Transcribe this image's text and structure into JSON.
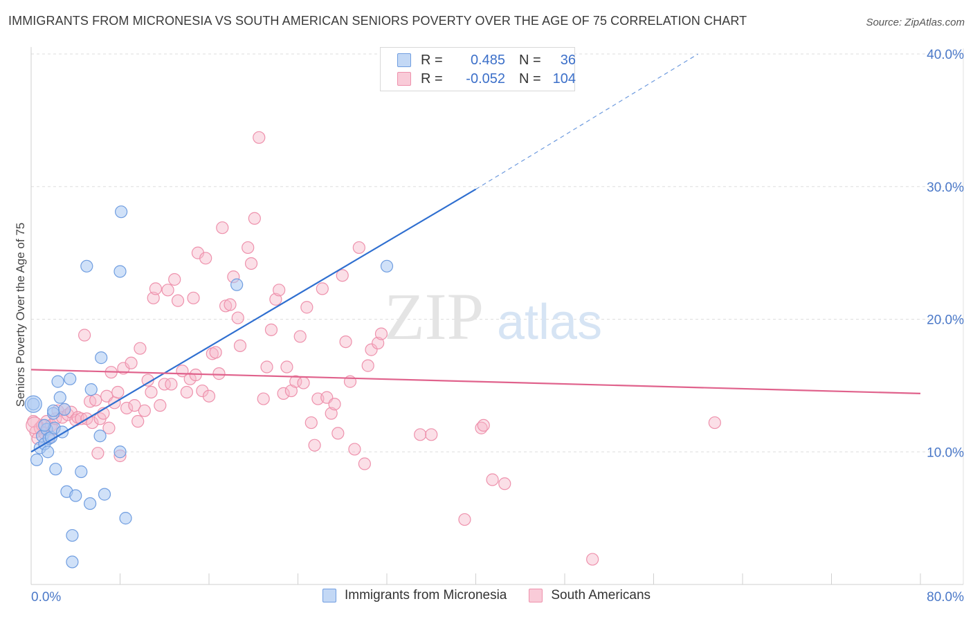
{
  "title": "IMMIGRANTS FROM MICRONESIA VS SOUTH AMERICAN SENIORS POVERTY OVER THE AGE OF 75 CORRELATION CHART",
  "source": "Source: ZipAtlas.com",
  "watermark": {
    "zip": "ZIP",
    "atlas": "atlas"
  },
  "legend": {
    "rows": [
      {
        "r_label": "R =",
        "r_value": "0.485",
        "n_label": "N =",
        "n_value": "36"
      },
      {
        "r_label": "R =",
        "r_value": "-0.052",
        "n_label": "N =",
        "n_value": "104"
      }
    ]
  },
  "colors": {
    "blue_fill": "#a9c8f2",
    "blue_stroke": "#6f9de0",
    "blue_line": "#2f6fd0",
    "pink_fill": "#f6b8c9",
    "pink_stroke": "#ee91ac",
    "pink_line": "#e0628c",
    "tick_label": "#4a78c8",
    "grid": "#dddddd"
  },
  "chart_data": {
    "type": "scatter",
    "title": "IMMIGRANTS FROM MICRONESIA VS SOUTH AMERICAN SENIORS POVERTY OVER THE AGE OF 75 CORRELATION CHART",
    "xlabel": "",
    "ylabel": "Seniors Poverty Over the Age of 75",
    "xlim": [
      0,
      80
    ],
    "ylim": [
      0,
      40
    ],
    "x_tick_labels": [
      "0.0%",
      "80.0%"
    ],
    "y_ticks": [
      10,
      20,
      30,
      40
    ],
    "y_tick_labels": [
      "10.0%",
      "20.0%",
      "30.0%",
      "40.0%"
    ],
    "grid": true,
    "legend_position": "top-center",
    "series": [
      {
        "name": "Immigrants from Micronesia",
        "color": "blue",
        "trend": {
          "x": [
            0,
            40
          ],
          "y": [
            10.0,
            29.8
          ],
          "dashed_to": [
            60,
            40.0
          ]
        },
        "points": [
          [
            0.2,
            13.6
          ],
          [
            0.5,
            9.4
          ],
          [
            0.8,
            10.3
          ],
          [
            1.0,
            11.2
          ],
          [
            1.2,
            10.6
          ],
          [
            1.4,
            11.7
          ],
          [
            1.5,
            10.0
          ],
          [
            1.6,
            11.0
          ],
          [
            1.8,
            11.1
          ],
          [
            2.0,
            12.9
          ],
          [
            2.0,
            13.1
          ],
          [
            2.1,
            11.8
          ],
          [
            2.2,
            8.7
          ],
          [
            2.4,
            15.3
          ],
          [
            2.6,
            14.1
          ],
          [
            2.8,
            11.5
          ],
          [
            3.0,
            13.2
          ],
          [
            3.2,
            7.0
          ],
          [
            3.5,
            15.5
          ],
          [
            3.7,
            3.7
          ],
          [
            4.0,
            6.7
          ],
          [
            4.5,
            8.5
          ],
          [
            5.0,
            24.0
          ],
          [
            5.3,
            6.1
          ],
          [
            5.4,
            14.7
          ],
          [
            6.2,
            11.2
          ],
          [
            6.3,
            17.1
          ],
          [
            6.6,
            6.8
          ],
          [
            8.0,
            10.0
          ],
          [
            8.0,
            23.6
          ],
          [
            8.1,
            28.1
          ],
          [
            8.5,
            5.0
          ],
          [
            18.5,
            22.6
          ],
          [
            32.0,
            24.0
          ],
          [
            3.7,
            1.7
          ],
          [
            1.2,
            12.0
          ]
        ]
      },
      {
        "name": "South Americans",
        "color": "pink",
        "trend": {
          "x": [
            0,
            80
          ],
          "y": [
            16.2,
            14.4
          ]
        },
        "points": [
          [
            0.2,
            12.3
          ],
          [
            0.4,
            11.5
          ],
          [
            0.6,
            11.0
          ],
          [
            0.8,
            11.8
          ],
          [
            1.0,
            12.0
          ],
          [
            1.2,
            11.4
          ],
          [
            1.4,
            12.3
          ],
          [
            1.6,
            11.1
          ],
          [
            1.8,
            12.0
          ],
          [
            2.0,
            11.7
          ],
          [
            2.2,
            12.5
          ],
          [
            2.4,
            13.1
          ],
          [
            2.8,
            12.6
          ],
          [
            3.0,
            13.2
          ],
          [
            3.3,
            12.8
          ],
          [
            3.6,
            13.0
          ],
          [
            4.0,
            12.4
          ],
          [
            4.2,
            12.6
          ],
          [
            4.5,
            12.5
          ],
          [
            4.8,
            18.8
          ],
          [
            5.0,
            12.5
          ],
          [
            5.3,
            13.8
          ],
          [
            5.5,
            12.2
          ],
          [
            5.8,
            13.9
          ],
          [
            6.0,
            9.9
          ],
          [
            6.2,
            12.5
          ],
          [
            6.5,
            12.9
          ],
          [
            6.8,
            14.2
          ],
          [
            7.0,
            11.8
          ],
          [
            7.2,
            16.0
          ],
          [
            7.5,
            13.7
          ],
          [
            7.8,
            14.5
          ],
          [
            8.0,
            9.7
          ],
          [
            8.3,
            16.3
          ],
          [
            8.6,
            13.3
          ],
          [
            9.0,
            16.7
          ],
          [
            9.3,
            13.5
          ],
          [
            9.6,
            12.3
          ],
          [
            9.8,
            17.8
          ],
          [
            10.2,
            13.1
          ],
          [
            10.5,
            15.4
          ],
          [
            10.8,
            14.5
          ],
          [
            11.0,
            21.6
          ],
          [
            11.2,
            22.3
          ],
          [
            11.6,
            13.5
          ],
          [
            12.0,
            15.1
          ],
          [
            12.3,
            22.2
          ],
          [
            12.6,
            15.1
          ],
          [
            12.9,
            23.0
          ],
          [
            13.2,
            21.4
          ],
          [
            13.6,
            16.1
          ],
          [
            14.0,
            14.5
          ],
          [
            14.3,
            15.5
          ],
          [
            14.6,
            21.6
          ],
          [
            14.8,
            15.8
          ],
          [
            15.0,
            25.0
          ],
          [
            15.4,
            14.6
          ],
          [
            15.7,
            24.6
          ],
          [
            16.0,
            14.2
          ],
          [
            16.3,
            17.4
          ],
          [
            16.6,
            17.5
          ],
          [
            16.9,
            15.9
          ],
          [
            17.2,
            26.9
          ],
          [
            17.5,
            21.0
          ],
          [
            17.9,
            21.1
          ],
          [
            18.2,
            23.2
          ],
          [
            18.6,
            20.1
          ],
          [
            18.8,
            18.0
          ],
          [
            19.5,
            25.4
          ],
          [
            19.8,
            24.2
          ],
          [
            20.1,
            27.6
          ],
          [
            20.5,
            33.7
          ],
          [
            20.9,
            14.0
          ],
          [
            21.2,
            16.4
          ],
          [
            21.6,
            19.2
          ],
          [
            22.0,
            21.5
          ],
          [
            22.3,
            22.2
          ],
          [
            22.7,
            14.4
          ],
          [
            23.0,
            16.4
          ],
          [
            23.4,
            14.6
          ],
          [
            23.8,
            15.3
          ],
          [
            24.2,
            18.7
          ],
          [
            24.5,
            15.2
          ],
          [
            24.8,
            20.9
          ],
          [
            25.2,
            12.2
          ],
          [
            25.5,
            10.5
          ],
          [
            25.8,
            14.0
          ],
          [
            26.2,
            22.3
          ],
          [
            26.6,
            14.1
          ],
          [
            27.0,
            12.9
          ],
          [
            27.3,
            13.6
          ],
          [
            27.6,
            11.4
          ],
          [
            28.0,
            23.3
          ],
          [
            28.3,
            18.3
          ],
          [
            28.7,
            15.3
          ],
          [
            29.1,
            10.2
          ],
          [
            29.5,
            25.4
          ],
          [
            30.0,
            9.1
          ],
          [
            30.3,
            16.5
          ],
          [
            30.6,
            17.7
          ],
          [
            31.2,
            18.2
          ],
          [
            31.5,
            18.9
          ],
          [
            35.0,
            11.3
          ],
          [
            36.0,
            11.3
          ]
        ],
        "extra_points": [
          [
            40.5,
            11.8
          ],
          [
            40.7,
            12.0
          ],
          [
            41.5,
            7.9
          ],
          [
            42.6,
            7.6
          ],
          [
            39.0,
            4.9
          ],
          [
            50.5,
            1.9
          ],
          [
            61.5,
            12.2
          ]
        ]
      }
    ]
  }
}
